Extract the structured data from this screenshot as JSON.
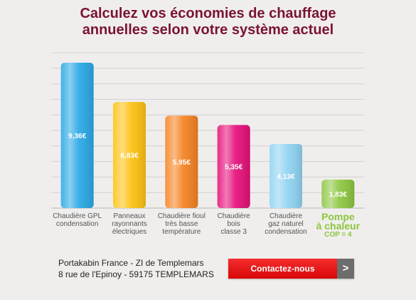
{
  "header": {
    "title_line1": "Calculez vos économies de chauffage",
    "title_line2": "annuelles selon votre système actuel"
  },
  "chart_data": {
    "type": "bar",
    "categories": [
      "Chaudière GPL\ncondensation",
      "Panneaux\nrayonnants\nélectriques",
      "Chaudière fioul\ntrès basse\ntempérature",
      "Chaudière\nbois\nclasse 3",
      "Chaudière\ngaz naturel\ncondensation",
      "Pompe\nà chaleur"
    ],
    "highlight_sub": "COP = 4",
    "values": [
      9.36,
      6.83,
      5.95,
      5.35,
      4.13,
      1.83
    ],
    "value_labels": [
      "9,36€",
      "6,83€",
      "5,95€",
      "5,35€",
      "4,13€",
      "1,83€"
    ],
    "colors": [
      "#29a8e6",
      "#fdc20f",
      "#f58220",
      "#e50f79",
      "#8fd3f2",
      "#8cc63f"
    ],
    "highlight_color": "#8cc63f",
    "ylim": [
      0,
      10
    ],
    "grid": true,
    "title": "",
    "xlabel": "",
    "ylabel": ""
  },
  "footer": {
    "company_line1": "Portakabin France - ZI de Templemars",
    "company_line2": "8 rue de l'Epinoy - 59175 TEMPLEMARS",
    "contact_label": "Contactez-nous",
    "arrow_label": ">"
  }
}
